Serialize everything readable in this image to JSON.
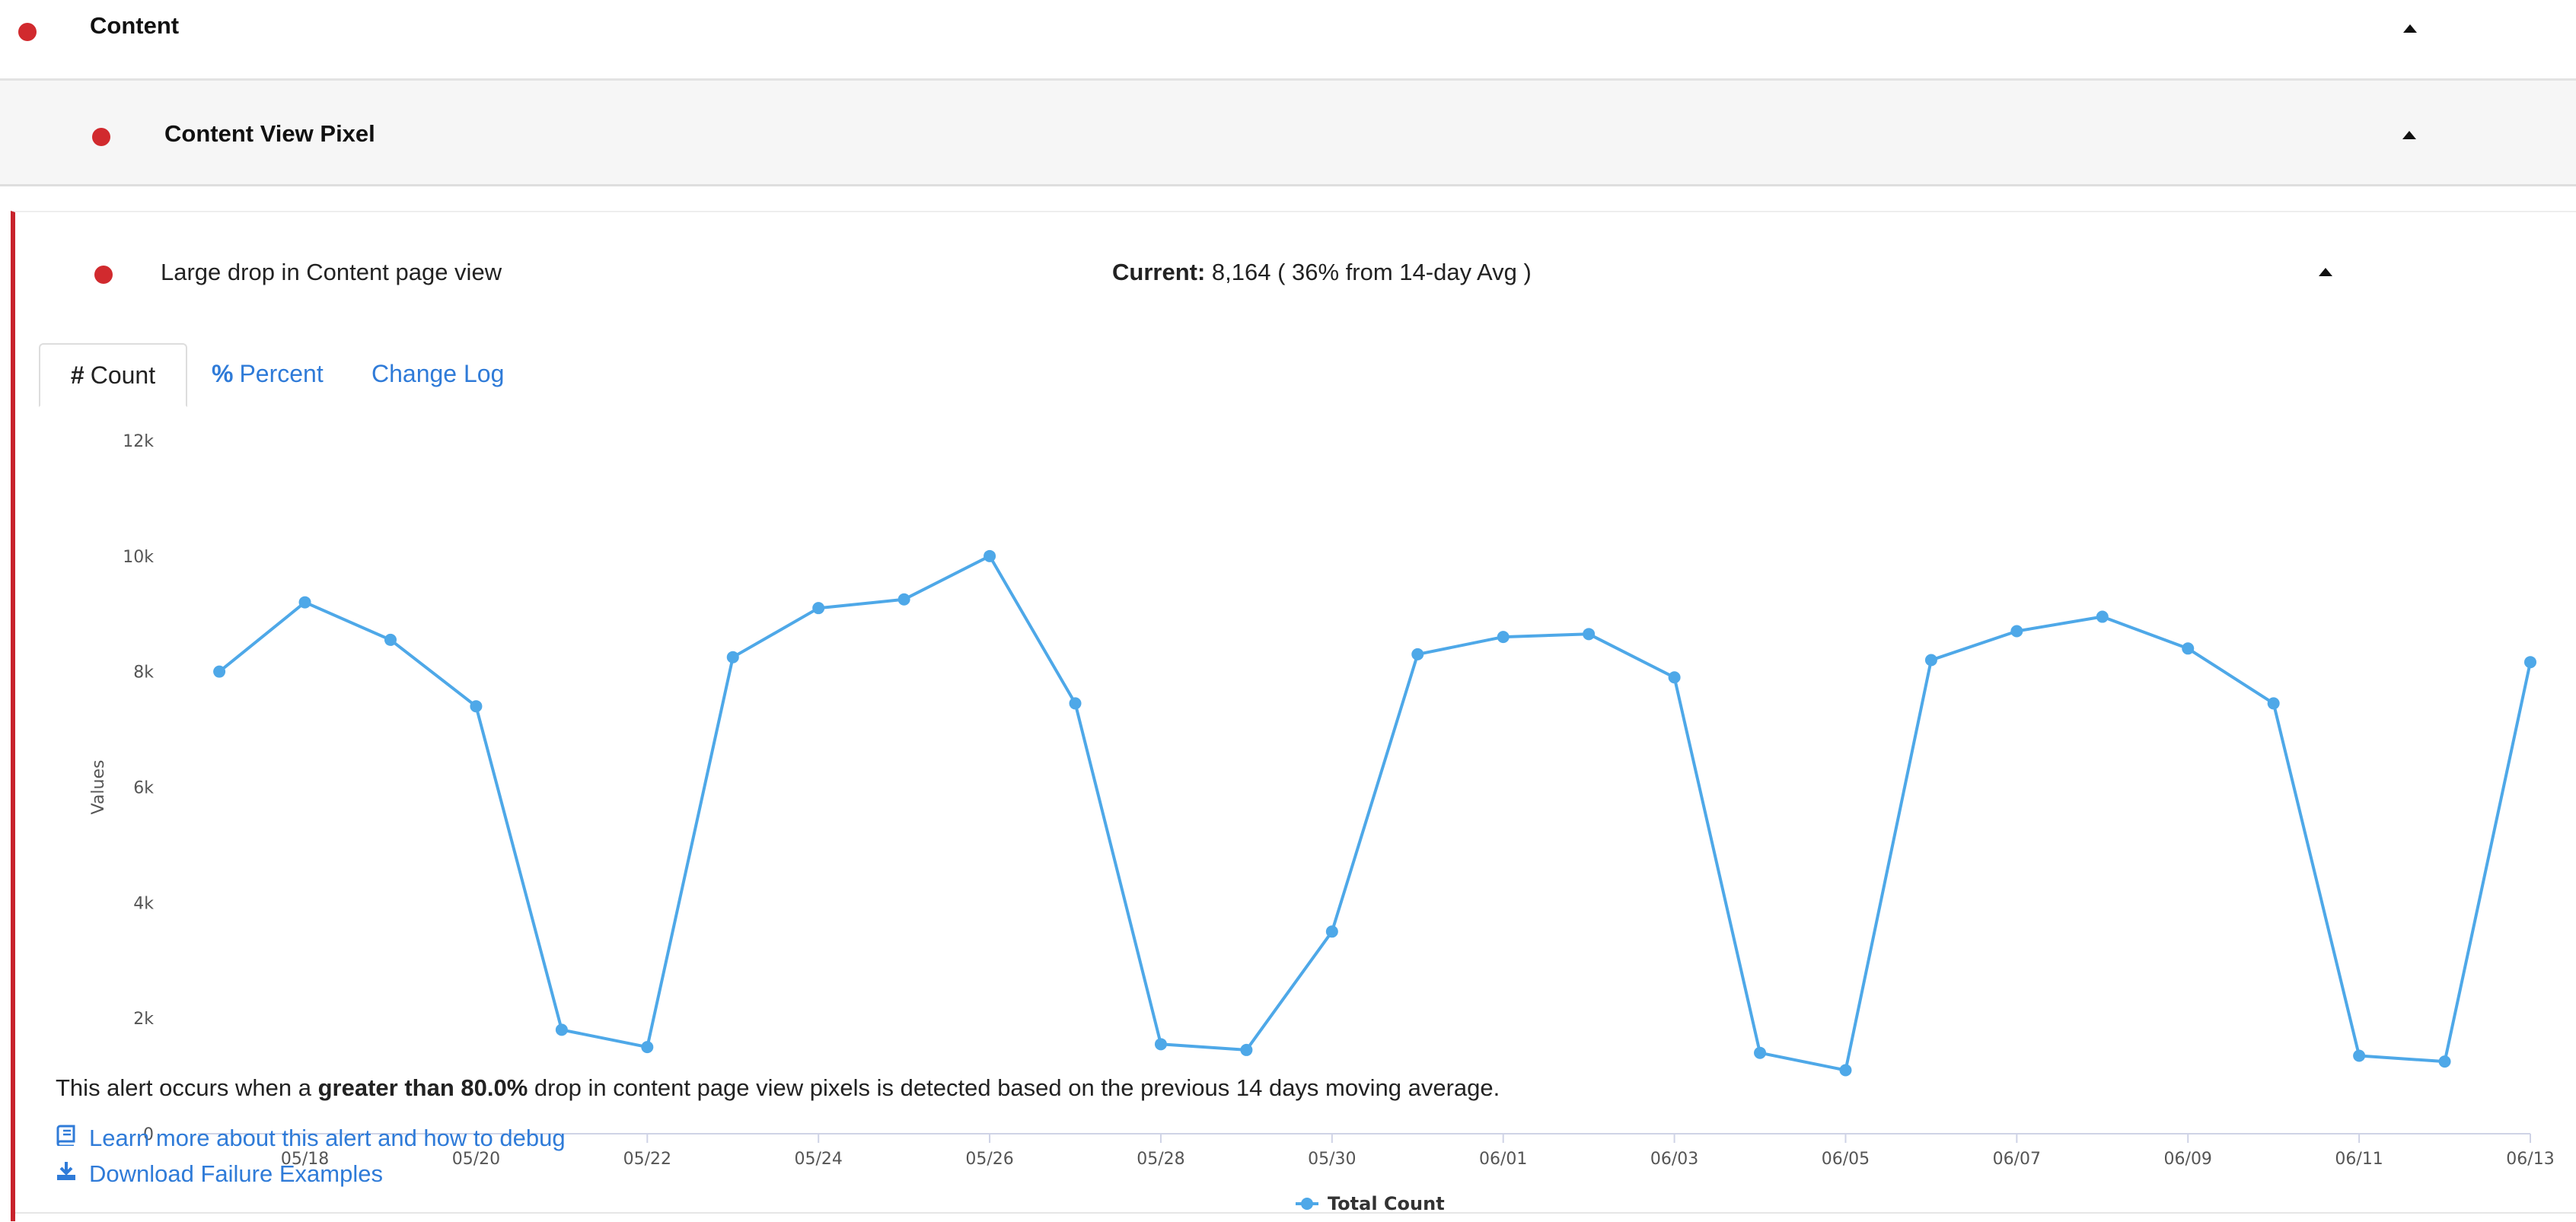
{
  "section": {
    "title": "Content",
    "status_color": "#d12a2e"
  },
  "subsection": {
    "title": "Content View Pixel"
  },
  "alert": {
    "title": "Large drop in Content page view",
    "current_label": "Current:",
    "current_value": "8,164 ( 36% from 14-day Avg )"
  },
  "tabs": [
    {
      "label": "Count",
      "icon": "hash-icon",
      "active": true
    },
    {
      "label": "Percent",
      "icon": "percent-icon",
      "active": false
    },
    {
      "label": "Change Log",
      "icon": "",
      "active": false
    }
  ],
  "chart_data": {
    "type": "line",
    "ylabel": "Values",
    "ylim": [
      0,
      12000
    ],
    "yticks": [
      0,
      2000,
      4000,
      6000,
      8000,
      10000,
      12000
    ],
    "ytick_labels": [
      "0",
      "2k",
      "4k",
      "6k",
      "8k",
      "10k",
      "12k"
    ],
    "x": [
      "05/17",
      "05/18",
      "05/19",
      "05/20",
      "05/21",
      "05/22",
      "05/23",
      "05/24",
      "05/25",
      "05/26",
      "05/27",
      "05/28",
      "05/29",
      "05/30",
      "05/31",
      "06/01",
      "06/02",
      "06/03",
      "06/04",
      "06/05",
      "06/06",
      "06/07",
      "06/08",
      "06/09",
      "06/10",
      "06/11",
      "06/12",
      "06/13"
    ],
    "xtick_labels": [
      "05/18",
      "05/20",
      "05/22",
      "05/24",
      "05/26",
      "05/28",
      "05/30",
      "06/01",
      "06/03",
      "06/05",
      "06/07",
      "06/09",
      "06/11",
      "06/13"
    ],
    "series": [
      {
        "name": "Total Count",
        "color": "#4ea8e8",
        "values": [
          8000,
          9200,
          8550,
          7400,
          1800,
          1500,
          8250,
          9100,
          9250,
          10000,
          7450,
          1550,
          1450,
          3500,
          8300,
          8600,
          8650,
          7900,
          1400,
          1100,
          8200,
          8700,
          8950,
          8400,
          7450,
          1350,
          1250,
          8164
        ]
      }
    ],
    "legend_position": "bottom-center",
    "grid": false
  },
  "description": {
    "before": "This alert occurs when a ",
    "bold": "greater than 80.0%",
    "after": " drop in content page view pixels is detected based on the previous 14 days moving average."
  },
  "links": [
    {
      "label": "Learn more about this alert and how to debug",
      "icon": "book-icon"
    },
    {
      "label": "Download Failure Examples",
      "icon": "download-icon"
    }
  ],
  "colors": {
    "accent": "#2f7bd8",
    "alert": "#c8232c",
    "series": "#4ea8e8"
  }
}
